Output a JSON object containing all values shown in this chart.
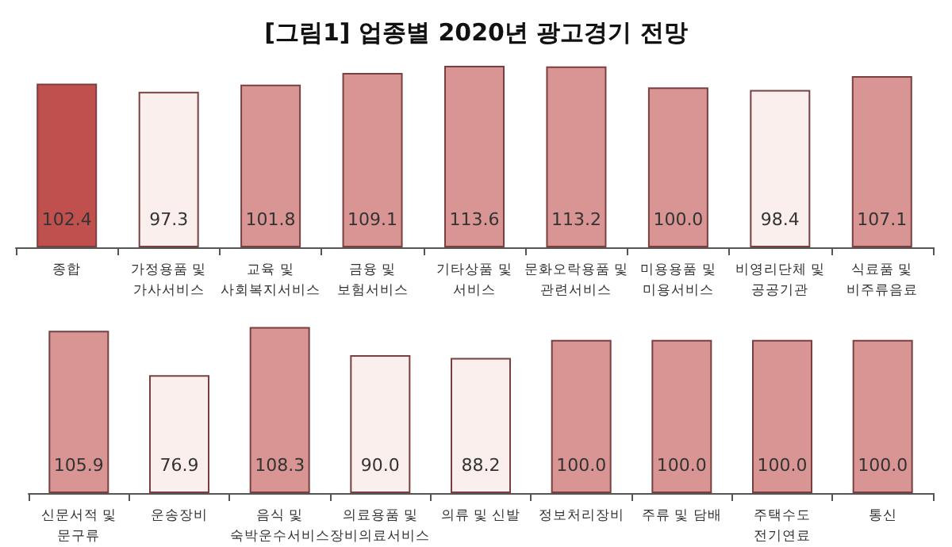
{
  "chart_data": [
    {
      "type": "bar",
      "title": "[그림1] 업종별 2020년 광고경기 전망",
      "categories": [
        "종합",
        "가정용품 및\n가사서비스",
        "교육 및\n사회복지서비스",
        "금융 및\n보험서비스",
        "기타상품 및\n서비스",
        "문화오락용품 및\n관련서비스",
        "미용용품 및\n미용서비스",
        "비영리단체 및\n공공기관",
        "식료품 및\n비주류음료"
      ],
      "values": [
        102.4,
        97.3,
        101.8,
        109.1,
        113.6,
        113.2,
        100.0,
        98.4,
        107.1
      ],
      "value_labels": [
        "102.4",
        "97.3",
        "101.8",
        "109.1",
        "113.6",
        "113.2",
        "100.0",
        "98.4",
        "107.1"
      ],
      "colors": [
        "#c0504d",
        "#fbefee",
        "#d99594",
        "#d99594",
        "#d99594",
        "#d99594",
        "#d99594",
        "#fbefee",
        "#d99594"
      ],
      "tick_labels": "x"
    },
    {
      "type": "bar",
      "categories": [
        "신문서적 및\n문구류",
        "운송장비",
        "음식 및\n숙박운수서비스",
        "의료용품 및\n장비의료서비스",
        "의류 및 신발",
        "정보처리장비",
        "주류 및 담배",
        "주택수도\n전기연료",
        "통신"
      ],
      "values": [
        105.9,
        76.9,
        108.3,
        90.0,
        88.2,
        100.0,
        100.0,
        100.0,
        100.0
      ],
      "value_labels": [
        "105.9",
        "76.9",
        "108.3",
        "90.0",
        "88.2",
        "100.0",
        "100.0",
        "100.0",
        "100.0"
      ],
      "colors": [
        "#d99594",
        "#fbefee",
        "#d99594",
        "#fbefee",
        "#fbefee",
        "#d99594",
        "#d99594",
        "#d99594",
        "#d99594"
      ],
      "tick_labels": "x"
    }
  ]
}
